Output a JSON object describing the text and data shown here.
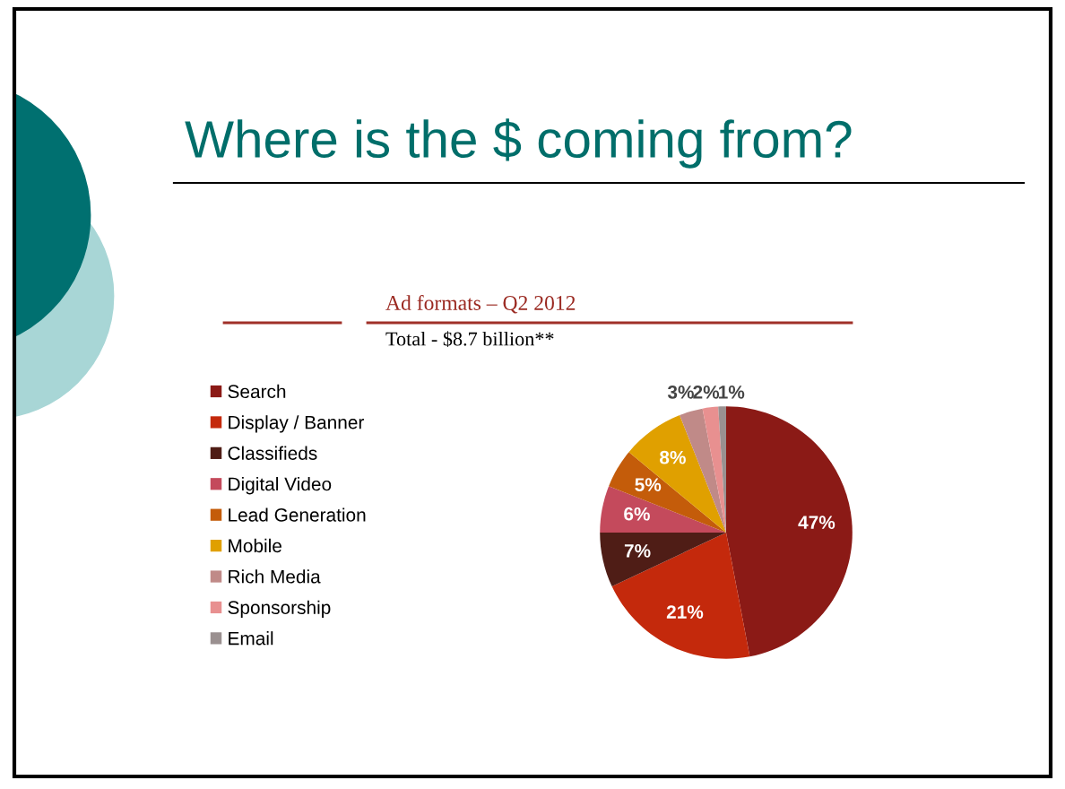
{
  "chart_data": {
    "type": "pie",
    "title": "Where is the $ coming from?",
    "subtitle": "Ad formats – Q2 2012",
    "annotations": [
      "Total - $8.7 billion**"
    ],
    "categories": [
      "Search",
      "Display / Banner",
      "Classifieds",
      "Digital Video",
      "Lead Generation",
      "Mobile",
      "Rich Media",
      "Sponsorship",
      "Email"
    ],
    "values": [
      47,
      21,
      7,
      6,
      5,
      8,
      3,
      2,
      1
    ],
    "colors": [
      "#8b1a16",
      "#c4290c",
      "#4f1d16",
      "#c44a5c",
      "#c45c0a",
      "#e0a000",
      "#c08a88",
      "#e89090",
      "#9a9090"
    ],
    "value_labels": [
      "47%",
      "21%",
      "7%",
      "6%",
      "5%",
      "8%",
      "3%",
      "2%",
      "1%"
    ],
    "legend": "left"
  }
}
